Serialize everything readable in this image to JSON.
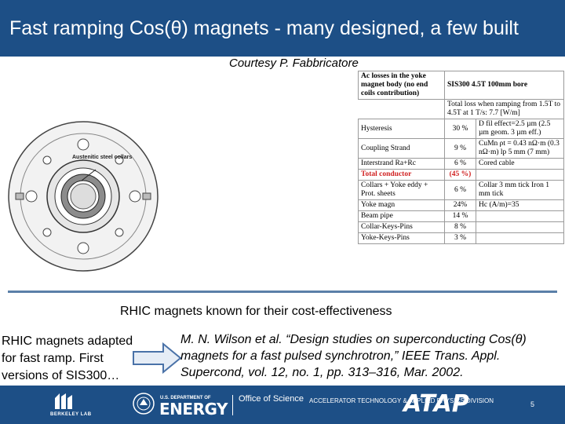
{
  "slide": {
    "title": "Fast ramping Cos(θ) magnets - many designed, a few built",
    "courtesy": "Courtesy P. Fabbricatore",
    "magnet_label": "Austenitic steel collars",
    "table": {
      "rows": [
        {
          "c1": "Ac losses in the yoke magnet body (no end coils contribution)",
          "c2": "SIS300 4.5T 100mm bore",
          "c3": "Total loss when ramping from 1.5T to 4.5T at 1 T/s: 7.7 [W/m]"
        },
        {
          "c1": "Hysteresis",
          "c2": "30 %",
          "c3": "D fil effect=2.5 µm (2.5 µm geom. 3 µm eff.)"
        },
        {
          "c1": "Coupling Strand",
          "c2": "9 %",
          "c3": "CuMn ρt = 0.43 nΩ·m (0.3 nΩ·m) lp 5 mm (7 mm)"
        },
        {
          "c1": "Interstrand Ra+Rc",
          "c2": "6 %",
          "c3": "Cored cable"
        },
        {
          "c1": "Total conductor",
          "c2": "(45 %)",
          "c3": ""
        },
        {
          "c1": "Collars + Yoke eddy + Prot. sheets",
          "c2": "6 %",
          "c3": "Collar 3 mm tick Iron 1 mm tick"
        },
        {
          "c1": "Yoke magn",
          "c2": "24%",
          "c3": "Hc (A/m)=35"
        },
        {
          "c1": "Beam pipe",
          "c2": "14 %",
          "c3": ""
        },
        {
          "c1": "Collar-Keys-Pins",
          "c2": "8 %",
          "c3": ""
        },
        {
          "c1": "Yoke-Keys-Pins",
          "c2": "3 %",
          "c3": ""
        }
      ]
    },
    "rhic_caption": "RHIC magnets known for their cost-effectiveness",
    "left_note": "RHIC magnets adapted for fast ramp. First versions of SIS300…",
    "citation": "M. N. Wilson et al. “Design studies on superconducting Cos(θ) magnets for a fast pulsed synchrotron,” IEEE Trans. Appl. Supercond, vol. 12, no. 1, pp. 313–316, Mar. 2002."
  },
  "footer": {
    "berkeley": "BERKELEY LAB",
    "doe_small": "U.S. DEPARTMENT OF",
    "doe_big": "ENERGY",
    "office": "Office of Science",
    "atd": "ACCELERATOR TECHNOLOGY & APPLIED PHYSICS DIVISION",
    "atap": "ATAP",
    "page": "5"
  },
  "colors": {
    "bar": "#1d4f86",
    "divider": "#5a7fa8",
    "red": "#d02020"
  }
}
